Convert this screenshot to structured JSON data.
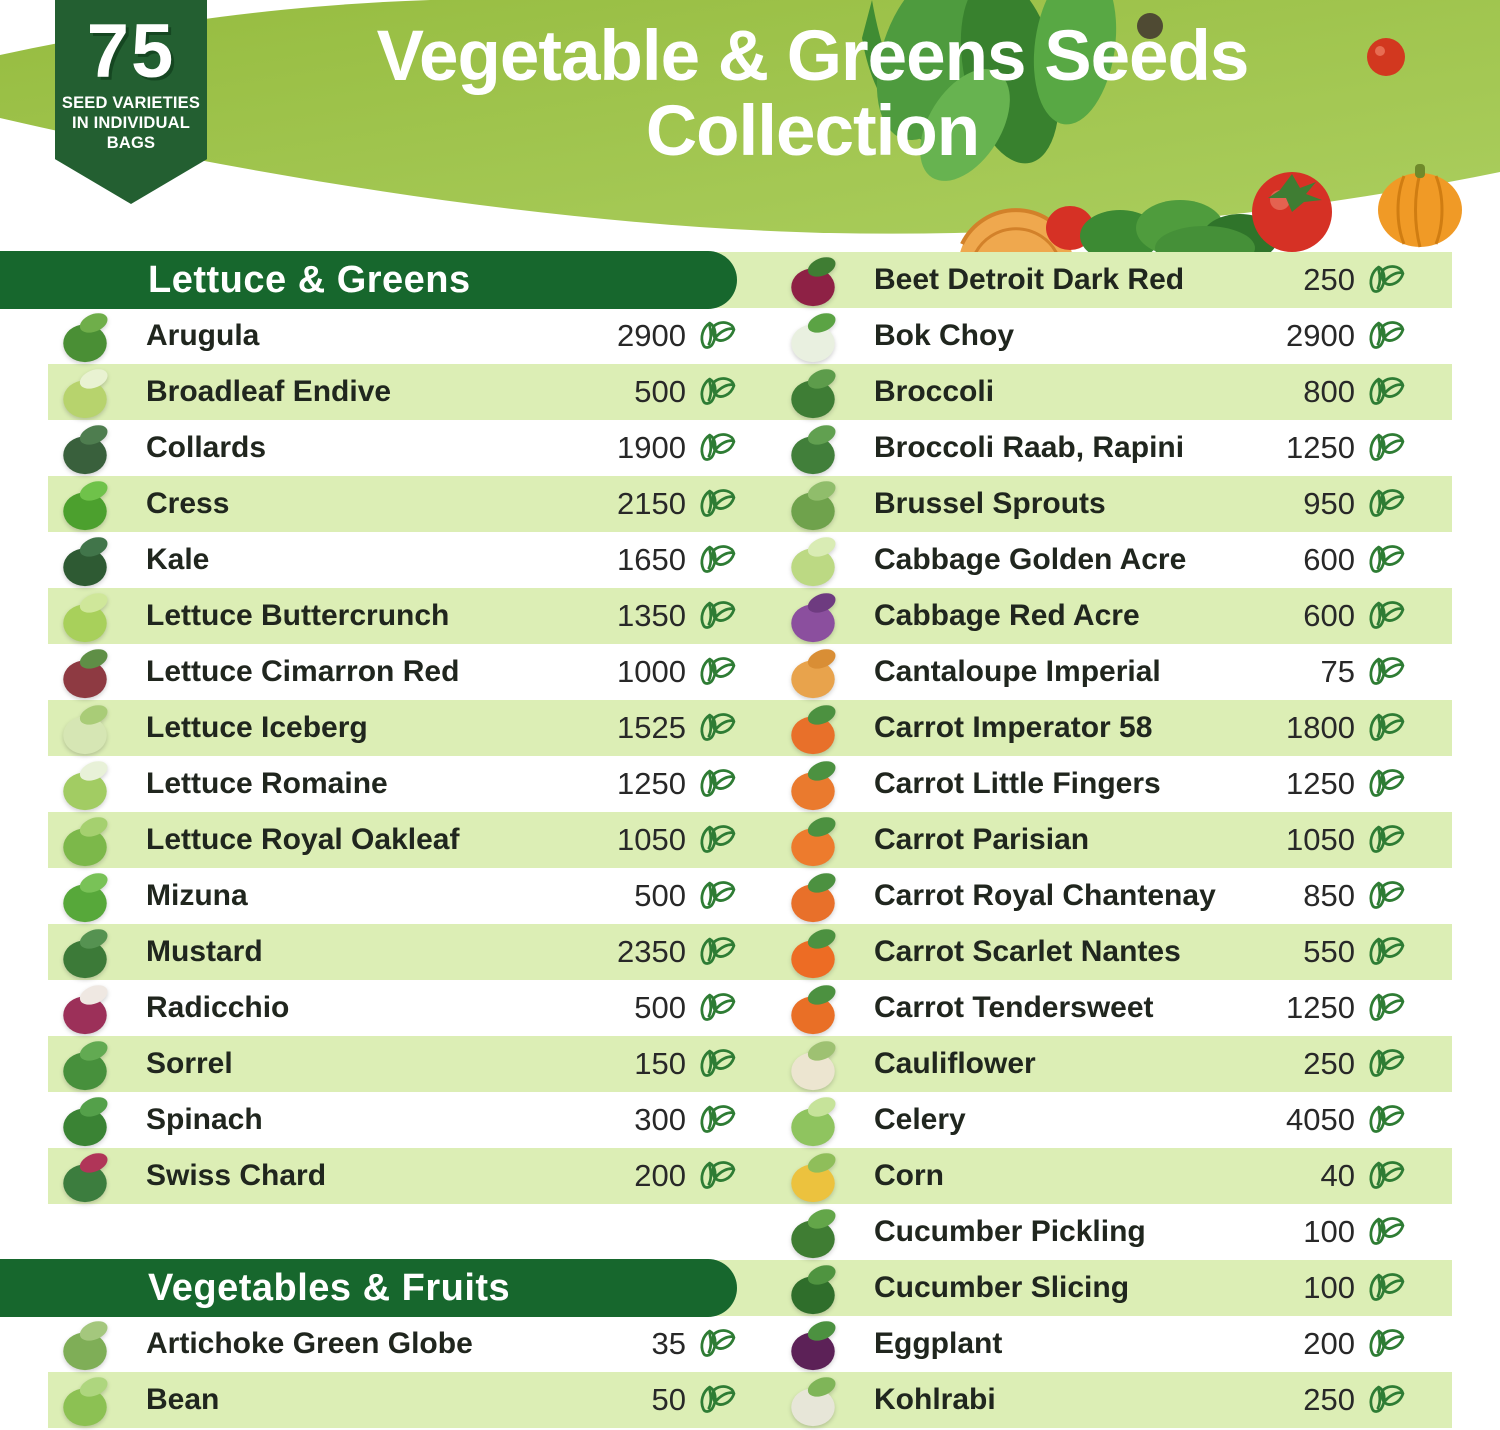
{
  "badge": {
    "number": "75",
    "lines": [
      "SEED VARIETIES",
      "IN INDIVIDUAL",
      "BAGS"
    ]
  },
  "title": {
    "line1": "Vegetable & Greens Seeds",
    "line2": "Collection"
  },
  "colors": {
    "hero_green_1": "#96bc40",
    "hero_green_2": "#abce5e",
    "section_bar_green": "#17672d",
    "badge_green": "#235f31",
    "stripe_green": "#dceeb5",
    "seed_icon_green": "#2e7c34",
    "name_text": "#20261e",
    "number_text": "#282828"
  },
  "rows": {
    "left_slots": [
      {
        "type": "header",
        "label": "Lettuce & Greens"
      },
      {
        "type": "item",
        "name": "Arugula",
        "count": "2900",
        "c1": "#4a8f35",
        "c2": "#6fae4a"
      },
      {
        "type": "item",
        "name": "Broadleaf Endive",
        "count": "500",
        "c1": "#b7d36d",
        "c2": "#e9f2d2"
      },
      {
        "type": "item",
        "name": "Collards",
        "count": "1900",
        "c1": "#39603c",
        "c2": "#4e7d4f"
      },
      {
        "type": "item",
        "name": "Cress",
        "count": "2150",
        "c1": "#4ca02e",
        "c2": "#6fc24a"
      },
      {
        "type": "item",
        "name": "Kale",
        "count": "1650",
        "c1": "#2e5a33",
        "c2": "#41754a"
      },
      {
        "type": "item",
        "name": "Lettuce Buttercrunch",
        "count": "1350",
        "c1": "#a8d05b",
        "c2": "#cfe79a"
      },
      {
        "type": "item",
        "name": "Lettuce Cimarron Red",
        "count": "1000",
        "c1": "#8e3a42",
        "c2": "#5f8f46"
      },
      {
        "type": "item",
        "name": "Lettuce Iceberg",
        "count": "1525",
        "c1": "#d6e6b4",
        "c2": "#a9cc77"
      },
      {
        "type": "item",
        "name": "Lettuce Romaine",
        "count": "1250",
        "c1": "#a2cc63",
        "c2": "#e8f1d8"
      },
      {
        "type": "item",
        "name": "Lettuce Royal Oakleaf",
        "count": "1050",
        "c1": "#7cb84a",
        "c2": "#a5d06f"
      },
      {
        "type": "item",
        "name": "Mizuna",
        "count": "500",
        "c1": "#57a83a",
        "c2": "#79c257"
      },
      {
        "type": "item",
        "name": "Mustard",
        "count": "2350",
        "c1": "#3c7a38",
        "c2": "#559251"
      },
      {
        "type": "item",
        "name": "Radicchio",
        "count": "500",
        "c1": "#9c3059",
        "c2": "#efe8e2"
      },
      {
        "type": "item",
        "name": "Sorrel",
        "count": "150",
        "c1": "#47903c",
        "c2": "#62aa52"
      },
      {
        "type": "item",
        "name": "Spinach",
        "count": "300",
        "c1": "#3a8334",
        "c2": "#54a04a"
      },
      {
        "type": "item",
        "name": "Swiss Chard",
        "count": "200",
        "c1": "#3c7d3e",
        "c2": "#b03558"
      },
      {
        "type": "empty"
      },
      {
        "type": "header",
        "label": "Vegetables & Fruits"
      },
      {
        "type": "item",
        "name": "Artichoke Green Globe",
        "count": "35",
        "c1": "#7fae57",
        "c2": "#a4c77d"
      },
      {
        "type": "item",
        "name": "Bean",
        "count": "50",
        "c1": "#8cc153",
        "c2": "#aed67e"
      }
    ],
    "right_items": [
      {
        "name": "Beet Detroit Dark Red",
        "count": "250",
        "c1": "#8e2145",
        "c2": "#3f7d33"
      },
      {
        "name": "Bok Choy",
        "count": "2900",
        "c1": "#e9f0e0",
        "c2": "#5ba344"
      },
      {
        "name": "Broccoli",
        "count": "800",
        "c1": "#3e7d35",
        "c2": "#5d9c4b"
      },
      {
        "name": "Broccoli Raab, Rapini",
        "count": "1250",
        "c1": "#417f3a",
        "c2": "#61a050"
      },
      {
        "name": "Brussel Sprouts",
        "count": "950",
        "c1": "#6fa24c",
        "c2": "#90bd6b"
      },
      {
        "name": "Cabbage Golden Acre",
        "count": "600",
        "c1": "#bcd983",
        "c2": "#d9ecb4"
      },
      {
        "name": "Cabbage Red Acre",
        "count": "600",
        "c1": "#8b4f9e",
        "c2": "#6e3b80"
      },
      {
        "name": "Cantaloupe Imperial",
        "count": "75",
        "c1": "#e8a34c",
        "c2": "#d98e35"
      },
      {
        "name": "Carrot Imperator 58",
        "count": "1800",
        "c1": "#e8702a",
        "c2": "#4c9140"
      },
      {
        "name": "Carrot Little Fingers",
        "count": "1250",
        "c1": "#ea7a2e",
        "c2": "#4c9140"
      },
      {
        "name": "Carrot Parisian",
        "count": "1050",
        "c1": "#ed7b2d",
        "c2": "#4c9140"
      },
      {
        "name": "Carrot Royal Chantenay",
        "count": "850",
        "c1": "#e8702a",
        "c2": "#4c9140"
      },
      {
        "name": "Carrot Scarlet Nantes",
        "count": "550",
        "c1": "#ed6c24",
        "c2": "#4c9140"
      },
      {
        "name": "Carrot Tendersweet",
        "count": "1250",
        "c1": "#e96f26",
        "c2": "#4c9140"
      },
      {
        "name": "Cauliflower",
        "count": "250",
        "c1": "#ece5d0",
        "c2": "#9ec172"
      },
      {
        "name": "Celery",
        "count": "4050",
        "c1": "#8fc45f",
        "c2": "#c6e39a"
      },
      {
        "name": "Corn",
        "count": "40",
        "c1": "#ecc23e",
        "c2": "#8fbe5a"
      },
      {
        "name": "Cucumber Pickling",
        "count": "100",
        "c1": "#3f7d33",
        "c2": "#63a649"
      },
      {
        "name": "Cucumber Slicing",
        "count": "100",
        "c1": "#2f6e2b",
        "c2": "#4f9440"
      },
      {
        "name": "Eggplant",
        "count": "200",
        "c1": "#5c2157",
        "c2": "#4c9140"
      },
      {
        "name": "Kohlrabi",
        "count": "250",
        "c1": "#e7e6d8",
        "c2": "#7fb558"
      }
    ]
  }
}
